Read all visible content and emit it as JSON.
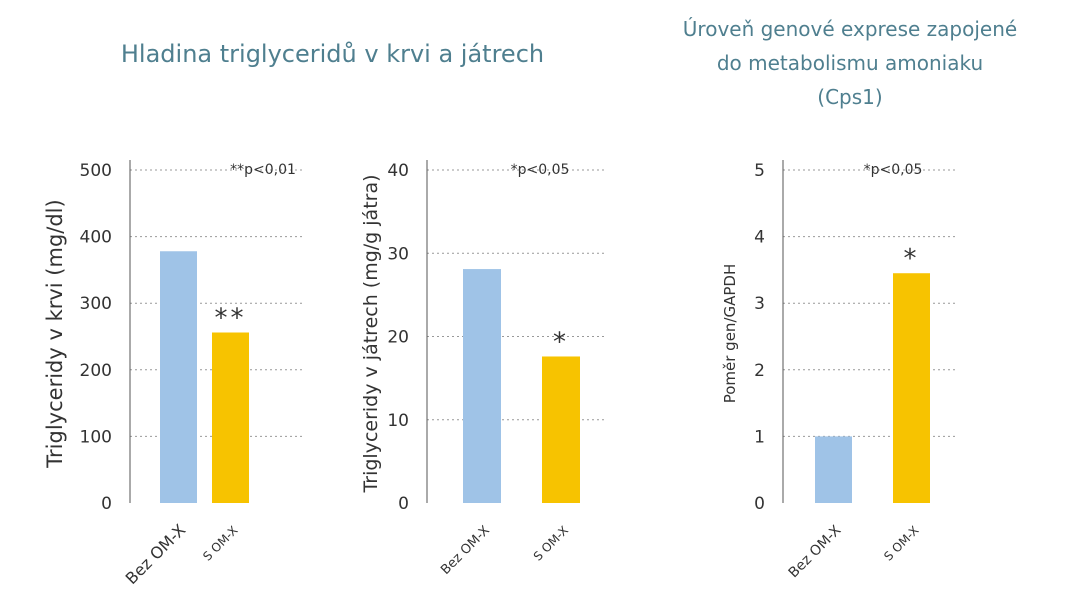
{
  "titles": {
    "triglycerides": "Hladina triglyceridů v krvi a játrech",
    "gene_expression_line1": "Úroveň genové exprese zapojené",
    "gene_expression_line2": "do metabolismu amoniaku",
    "gene_expression_line3": "(Cps1)"
  },
  "colors": {
    "control": "#9fc3e7",
    "treated": "#f7c300",
    "grid": "#999999",
    "axis": "#555555",
    "text": "#333333"
  },
  "chart_data": [
    {
      "type": "bar",
      "categories": [
        "Bez OM-X",
        "S OM-X"
      ],
      "values": [
        378,
        256
      ],
      "ylabel": "Triglyceridy v krvi (mg/dl)",
      "ylim": [
        0,
        500
      ],
      "yticks": [
        0,
        100,
        200,
        300,
        400,
        500
      ],
      "significance": [
        "",
        "**"
      ],
      "pvalue": "**p<0,01",
      "grid": true
    },
    {
      "type": "bar",
      "categories": [
        "Bez OM-X",
        "S OM-X"
      ],
      "values": [
        28.1,
        17.6
      ],
      "ylabel": "Triglyceridy v játrech (mg/g játra)",
      "ylim": [
        0,
        40
      ],
      "yticks": [
        0,
        10,
        20,
        30,
        40
      ],
      "significance": [
        "",
        "*"
      ],
      "pvalue": "*p<0,05",
      "grid": true
    },
    {
      "type": "bar",
      "categories": [
        "Bez OM-X",
        "S OM-X"
      ],
      "values": [
        1.0,
        3.45
      ],
      "ylabel": "Poměr gen/GAPDH",
      "ylim": [
        0,
        5
      ],
      "yticks": [
        0,
        1,
        2,
        3,
        4,
        5
      ],
      "significance": [
        "",
        "*"
      ],
      "pvalue": "*p<0,05",
      "grid": true
    }
  ]
}
